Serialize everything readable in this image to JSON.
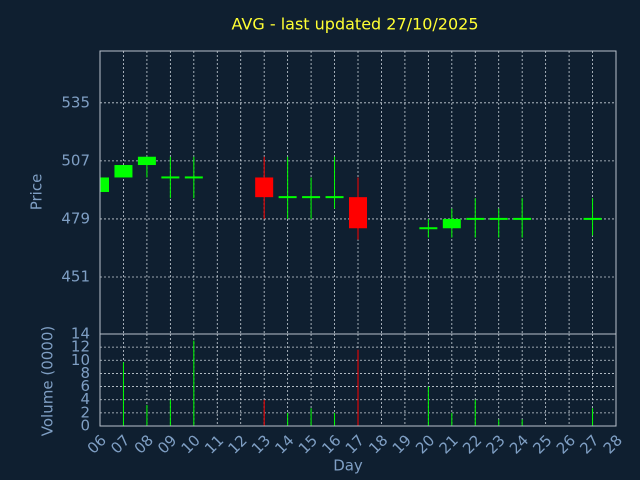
{
  "chart_data": [
    {
      "type": "candlestick",
      "title": "AVG - last updated 27/10/2025",
      "ylabel": "Price",
      "x": [
        "06",
        "07",
        "08",
        "09",
        "10",
        "13",
        "14",
        "15",
        "16",
        "17",
        "20",
        "21",
        "22",
        "23",
        "24",
        "27"
      ],
      "open": [
        492,
        499,
        505,
        499,
        499,
        499,
        489.5,
        489.5,
        489.5,
        489.5,
        474.5,
        474.5,
        479,
        479,
        479,
        479
      ],
      "high": [
        499,
        505,
        509,
        509,
        509,
        509,
        509,
        499,
        509,
        499,
        479,
        484,
        489,
        484,
        489,
        489
      ],
      "low": [
        492,
        499,
        499,
        489,
        489,
        479,
        479,
        479,
        484,
        469,
        470,
        470,
        470,
        470,
        470,
        471
      ],
      "close": [
        499,
        505,
        509,
        499.5,
        499.5,
        489.5,
        490,
        490,
        490,
        474.5,
        475,
        479,
        479.5,
        479.5,
        479.5,
        479.5
      ],
      "up_color": "#00ff00",
      "down_color": "#ff0000",
      "ylim": [
        423.5,
        560
      ],
      "yticks": [
        451,
        479,
        507,
        535
      ],
      "xticks": [
        "06",
        "07",
        "08",
        "09",
        "10",
        "11",
        "12",
        "13",
        "14",
        "15",
        "16",
        "17",
        "18",
        "19",
        "20",
        "21",
        "22",
        "23",
        "24",
        "25",
        "26",
        "27",
        "28"
      ],
      "grid": true
    },
    {
      "type": "volume",
      "ylabel": "Volume (0000)",
      "xlabel": "Day",
      "x": [
        "06",
        "07",
        "08",
        "09",
        "10",
        "13",
        "14",
        "15",
        "16",
        "17",
        "20",
        "21",
        "22",
        "23",
        "24",
        "27"
      ],
      "values": [
        0,
        9.7,
        3.2,
        4,
        13,
        4,
        2,
        2.7,
        2,
        11.6,
        6,
        2,
        4,
        1,
        1,
        2.7
      ],
      "colors": [
        "#00ff00",
        "#00ff00",
        "#00ff00",
        "#00ff00",
        "#00ff00",
        "#ff0000",
        "#00ff00",
        "#00ff00",
        "#00ff00",
        "#ff0000",
        "#00ff00",
        "#00ff00",
        "#00ff00",
        "#00ff00",
        "#00ff00",
        "#00ff00"
      ],
      "ylim": [
        0,
        14
      ],
      "yticks": [
        0,
        2,
        4,
        6,
        8,
        10,
        12,
        14
      ],
      "xticks": [
        "06",
        "07",
        "08",
        "09",
        "10",
        "11",
        "12",
        "13",
        "14",
        "15",
        "16",
        "17",
        "18",
        "19",
        "20",
        "21",
        "22",
        "23",
        "24",
        "25",
        "26",
        "27",
        "28"
      ],
      "grid": true
    }
  ]
}
